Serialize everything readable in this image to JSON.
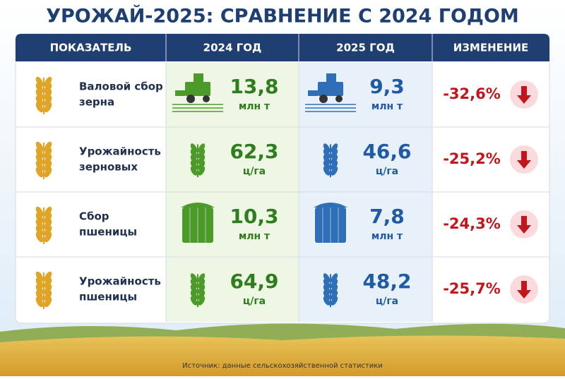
{
  "header": {
    "title": "УРОЖАЙ-2025: СРАВНЕНИЕ С 2024 ГОДОМ"
  },
  "table": {
    "columns": [
      "ПОКАЗАТЕЛЬ",
      "2024 ГОД",
      "2025 ГОД",
      "ИЗМЕНЕНИЕ"
    ],
    "rows": [
      {
        "label": [
          "Валовой сбор",
          "зерна"
        ],
        "v2024": "13,8",
        "u2024": "млн т",
        "v2025": "9,3",
        "u2025": "млн т",
        "change": "-32,6%"
      },
      {
        "label": [
          "Урожайность",
          "зерновых"
        ],
        "v2024": "62,3",
        "u2024": "ц/га",
        "v2025": "46,6",
        "u2025": "ц/га",
        "change": "-25,2%"
      },
      {
        "label": [
          "Сбор",
          "пшеницы"
        ],
        "v2024": "10,3",
        "u2024": "млн т",
        "v2025": "7,8",
        "u2025": "млн т",
        "change": "-24,3%"
      },
      {
        "label": [
          "Урожайность",
          "пшеницы"
        ],
        "v2024": "64,9",
        "u2024": "ц/га",
        "v2025": "48,2",
        "u2025": "ц/га",
        "change": "-25,7%"
      }
    ]
  },
  "footer": {
    "source": "Источник: данные сельскохозяйственной статистики"
  }
}
